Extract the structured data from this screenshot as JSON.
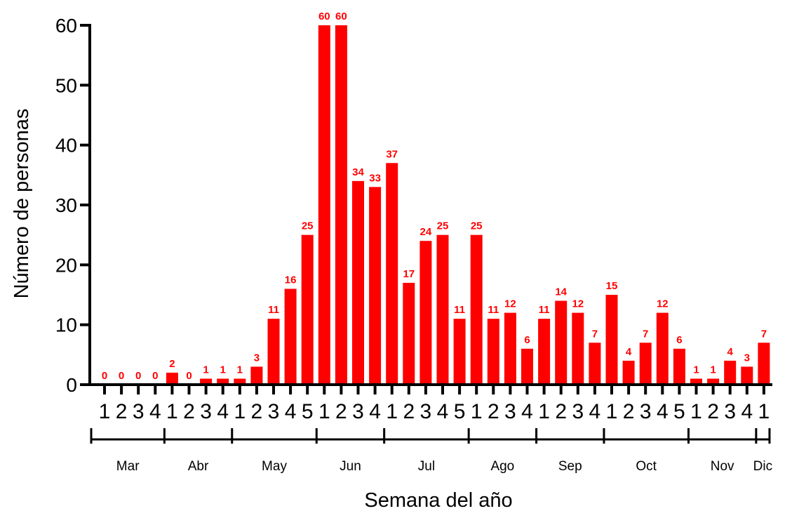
{
  "chart_data": {
    "type": "bar",
    "xlabel": "Semana del año",
    "ylabel": "Número de personas",
    "ylim": [
      0,
      60
    ],
    "yticks": [
      0,
      10,
      20,
      30,
      40,
      50,
      60
    ],
    "bar_color": "#ff0000",
    "label_color": "#ff0000",
    "grid": false,
    "categories": [
      "1",
      "2",
      "3",
      "4",
      "1",
      "2",
      "3",
      "4",
      "1",
      "2",
      "3",
      "4",
      "5",
      "1",
      "2",
      "3",
      "4",
      "1",
      "2",
      "3",
      "4",
      "5",
      "1",
      "2",
      "3",
      "4",
      "1",
      "2",
      "3",
      "4",
      "1",
      "2",
      "3",
      "4",
      "5",
      "1",
      "2",
      "3",
      "4",
      "1"
    ],
    "values": [
      0,
      0,
      0,
      0,
      2,
      0,
      1,
      1,
      1,
      3,
      11,
      16,
      25,
      60,
      60,
      34,
      33,
      37,
      17,
      24,
      25,
      11,
      25,
      11,
      12,
      6,
      11,
      14,
      12,
      7,
      15,
      4,
      7,
      12,
      6,
      1,
      1,
      4,
      3,
      7
    ],
    "months": [
      {
        "name": "Mar",
        "weeks": 4
      },
      {
        "name": "Abr",
        "weeks": 4
      },
      {
        "name": "May",
        "weeks": 5
      },
      {
        "name": "Jun",
        "weeks": 4
      },
      {
        "name": "Jul",
        "weeks": 5
      },
      {
        "name": "Ago",
        "weeks": 4
      },
      {
        "name": "Sep",
        "weeks": 4
      },
      {
        "name": "Oct",
        "weeks": 5
      },
      {
        "name": "Nov",
        "weeks": 4
      },
      {
        "name": "Dic",
        "weeks": 1
      }
    ]
  }
}
